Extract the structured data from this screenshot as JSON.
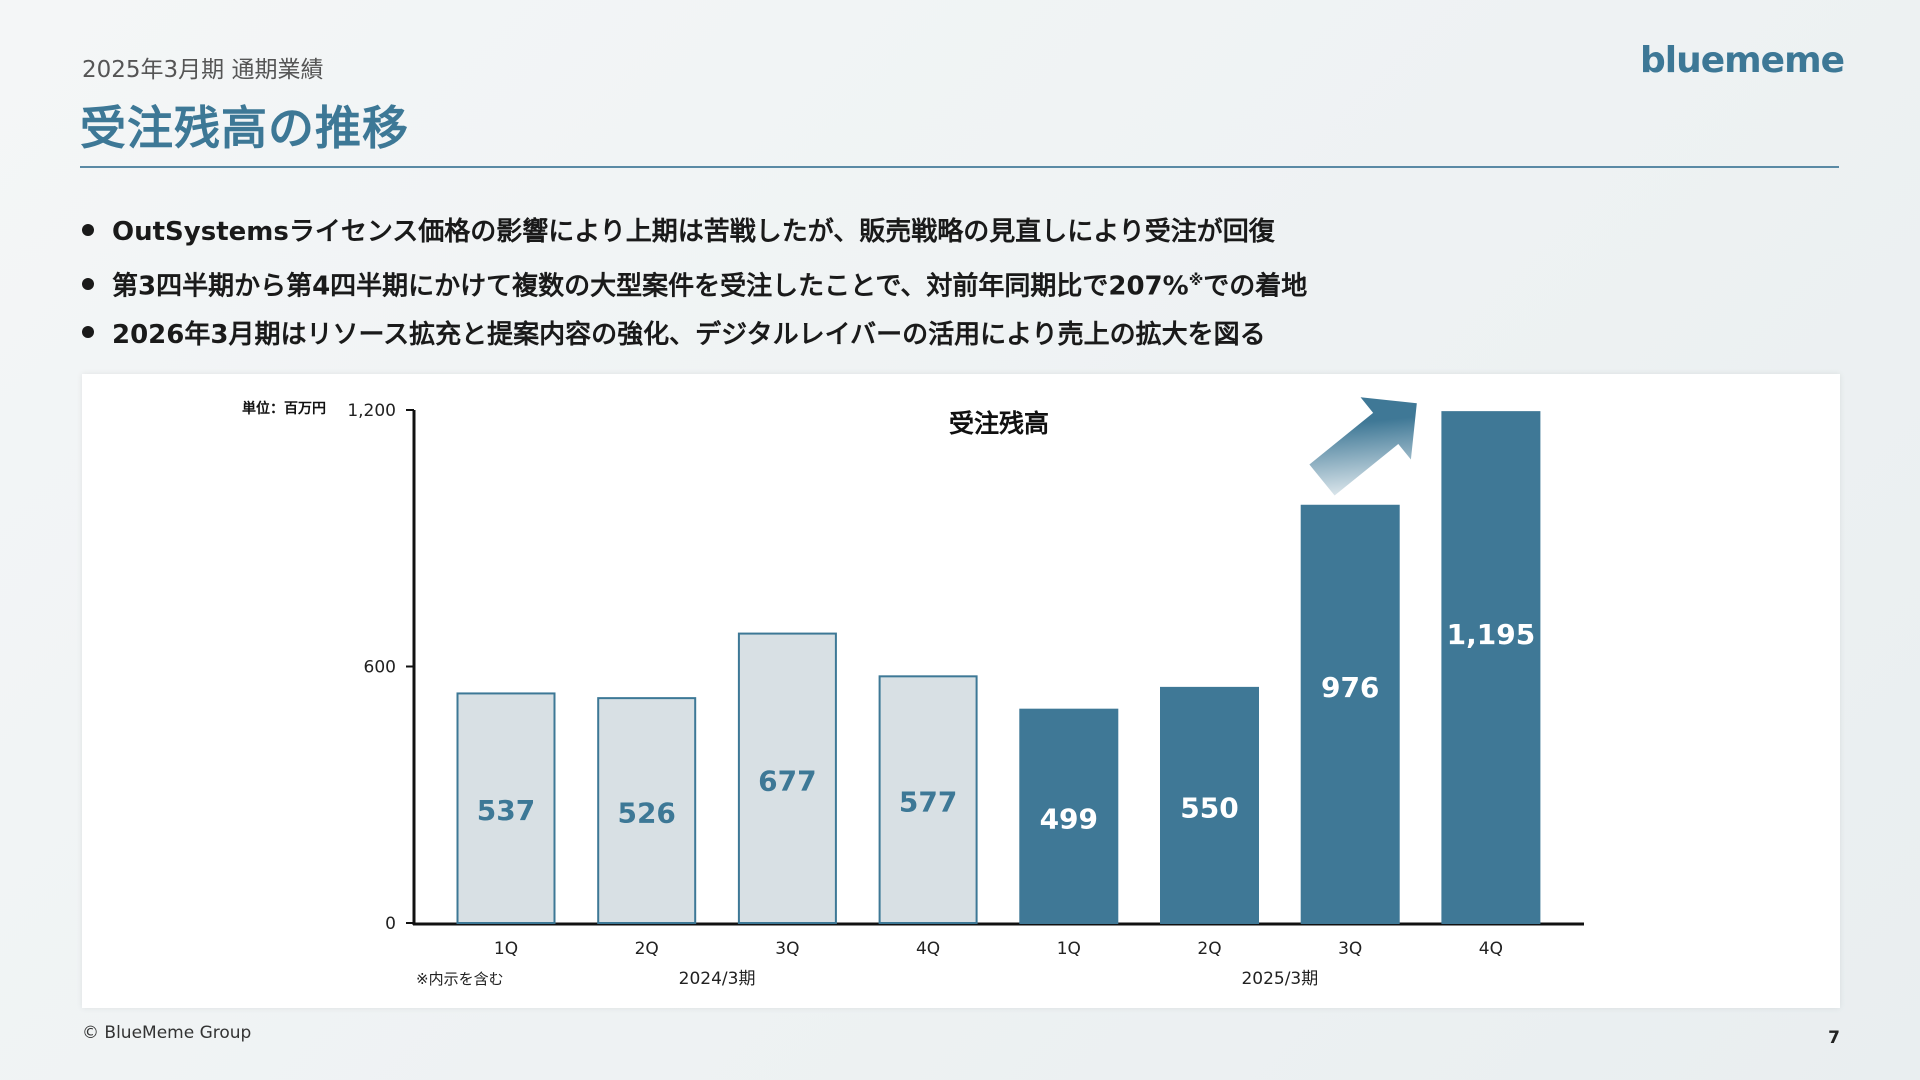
{
  "header": {
    "subtitle": "2025年3月期 通期業績",
    "title": "受注残高の推移",
    "logo": "bluememe"
  },
  "bullets": [
    {
      "text": "OutSystemsライセンス価格の影響により上期は苦戦したが、販売戦略の見直しにより受注が回復"
    },
    {
      "text": "第3四半期から第4四半期にかけて複数の大型案件を受注したことで、対前年同期比で207%",
      "sup": "※",
      "after": "での着地"
    },
    {
      "text": "2026年3月期はリソース拡充と提案内容の強化、デジタルレイバーの活用により売上の拡大を図る"
    }
  ],
  "chart_data": {
    "type": "bar",
    "title": "受注残高",
    "unit_label": "単位：百万円",
    "ylim": [
      0,
      1200
    ],
    "yticks": [
      0,
      600,
      1200
    ],
    "ytick_labels": [
      "0",
      "600",
      "1,200"
    ],
    "categories": [
      "1Q",
      "2Q",
      "3Q",
      "4Q",
      "1Q",
      "2Q",
      "3Q",
      "4Q"
    ],
    "values": [
      537,
      526,
      677,
      577,
      499,
      550,
      976,
      1195
    ],
    "value_labels": [
      "537",
      "526",
      "677",
      "577",
      "499",
      "550",
      "976",
      "1,195"
    ],
    "groups": [
      {
        "label": "2024/3期",
        "start": 0,
        "end": 3,
        "fill": "#d8e0e4",
        "stroke": "#3d7896",
        "text_color": "#3d7896"
      },
      {
        "label": "2025/3期",
        "start": 4,
        "end": 7,
        "fill": "#3f7896",
        "stroke": "#3f7896",
        "text_color": "#ffffff"
      }
    ],
    "note": "※内示を含む",
    "grid": false,
    "legend": "none"
  },
  "footer": {
    "copyright": "© BlueMeme Group",
    "page_number": "7"
  }
}
